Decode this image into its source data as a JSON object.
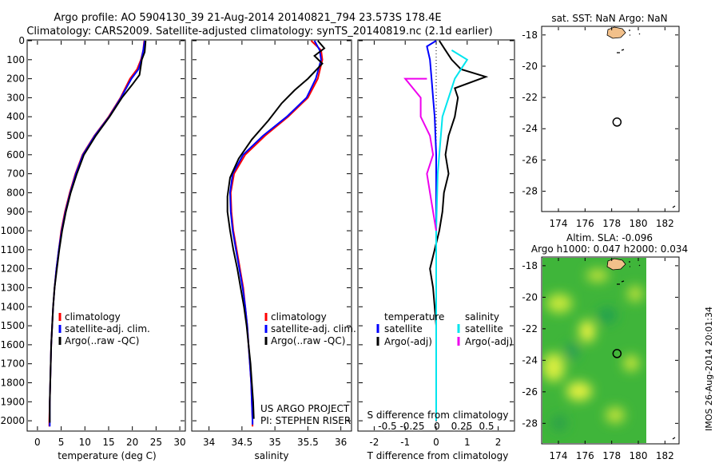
{
  "header": {
    "title": "Argo profile: AO 5904130_39 21-Aug-2014 20140821_794 23.573S 178.4E",
    "subtitle": "Climatology: CARS2009. Satellite-adjusted climatology: synTS_20140819.nc (2.1d earlier)"
  },
  "colors": {
    "climatology": "#ff0000",
    "satellite": "#0000ff",
    "argo": "#000000",
    "sat_s": "#00e5ee",
    "argo_s": "#ee00ee",
    "land": "#f2c08a"
  },
  "chart_data": [
    {
      "type": "line",
      "xlabel": "temperature (deg C)",
      "ylabel": "",
      "xlim": [
        -2,
        31
      ],
      "ylim": [
        2050,
        0
      ],
      "xticks": [
        0,
        5,
        10,
        15,
        20,
        25,
        30
      ],
      "yticks": [
        0,
        100,
        200,
        300,
        400,
        500,
        600,
        700,
        800,
        900,
        1000,
        1100,
        1200,
        1300,
        1400,
        1500,
        1600,
        1700,
        1800,
        1900,
        2000
      ],
      "legend": [
        "climatology",
        "satellite-adj. clim.",
        "Argo(..raw -QC)"
      ],
      "series": [
        {
          "name": "climatology",
          "color": "#ff0000",
          "points": [
            [
              22.5,
              0
            ],
            [
              22.3,
              50
            ],
            [
              21.8,
              100
            ],
            [
              21.0,
              150
            ],
            [
              19.5,
              200
            ],
            [
              17.5,
              300
            ],
            [
              15.0,
              400
            ],
            [
              12.0,
              500
            ],
            [
              9.5,
              600
            ],
            [
              8.0,
              700
            ],
            [
              6.8,
              800
            ],
            [
              5.8,
              900
            ],
            [
              5.0,
              1000
            ],
            [
              4.5,
              1100
            ],
            [
              4.0,
              1200
            ],
            [
              3.6,
              1300
            ],
            [
              3.3,
              1400
            ],
            [
              3.1,
              1500
            ],
            [
              2.9,
              1600
            ],
            [
              2.8,
              1700
            ],
            [
              2.7,
              1800
            ],
            [
              2.6,
              1900
            ],
            [
              2.5,
              2000
            ],
            [
              2.5,
              2030
            ]
          ]
        },
        {
          "name": "satellite-adj. clim.",
          "color": "#0000ff",
          "points": [
            [
              22.6,
              0
            ],
            [
              22.3,
              50
            ],
            [
              21.9,
              100
            ],
            [
              21.3,
              150
            ],
            [
              19.8,
              200
            ],
            [
              17.6,
              300
            ],
            [
              15.1,
              400
            ],
            [
              12.1,
              500
            ],
            [
              9.6,
              600
            ],
            [
              8.1,
              700
            ],
            [
              6.9,
              800
            ],
            [
              5.9,
              900
            ],
            [
              5.1,
              1000
            ],
            [
              4.5,
              1100
            ],
            [
              4.0,
              1200
            ],
            [
              3.6,
              1300
            ],
            [
              3.3,
              1400
            ],
            [
              3.1,
              1500
            ],
            [
              2.9,
              1600
            ],
            [
              2.8,
              1700
            ],
            [
              2.7,
              1800
            ],
            [
              2.6,
              1900
            ],
            [
              2.6,
              2000
            ],
            [
              2.6,
              2030
            ]
          ]
        },
        {
          "name": "Argo(..raw -QC)",
          "color": "#000000",
          "points": [
            [
              22.8,
              0
            ],
            [
              22.6,
              60
            ],
            [
              22.0,
              100
            ],
            [
              21.5,
              180
            ],
            [
              20.0,
              230
            ],
            [
              17.8,
              300
            ],
            [
              15.2,
              400
            ],
            [
              12.3,
              500
            ],
            [
              9.8,
              600
            ],
            [
              8.3,
              700
            ],
            [
              7.0,
              800
            ],
            [
              6.0,
              900
            ],
            [
              5.2,
              1000
            ],
            [
              4.6,
              1100
            ],
            [
              4.1,
              1200
            ],
            [
              3.6,
              1300
            ],
            [
              3.3,
              1400
            ],
            [
              3.1,
              1500
            ],
            [
              2.9,
              1600
            ],
            [
              2.8,
              1700
            ],
            [
              2.7,
              1800
            ],
            [
              2.6,
              1900
            ],
            [
              2.6,
              2000
            ],
            [
              2.6,
              2010
            ]
          ]
        }
      ]
    },
    {
      "type": "line",
      "xlabel": "salinity",
      "ylabel": "",
      "xlim": [
        33.75,
        36.15
      ],
      "ylim": [
        2050,
        0
      ],
      "xticks": [
        34,
        34.5,
        35,
        35.5,
        36
      ],
      "legend": [
        "climatology",
        "satellite-adj. clim.",
        "Argo(..raw -QC)"
      ],
      "series": [
        {
          "name": "climatology",
          "color": "#ff0000",
          "points": [
            [
              35.55,
              0
            ],
            [
              35.7,
              50
            ],
            [
              35.72,
              100
            ],
            [
              35.65,
              200
            ],
            [
              35.5,
              300
            ],
            [
              35.2,
              400
            ],
            [
              34.85,
              500
            ],
            [
              34.55,
              600
            ],
            [
              34.38,
              700
            ],
            [
              34.33,
              800
            ],
            [
              34.34,
              900
            ],
            [
              34.37,
              1000
            ],
            [
              34.42,
              1100
            ],
            [
              34.47,
              1200
            ],
            [
              34.52,
              1300
            ],
            [
              34.55,
              1400
            ],
            [
              34.58,
              1500
            ],
            [
              34.6,
              1600
            ],
            [
              34.62,
              1700
            ],
            [
              34.64,
              1800
            ],
            [
              34.65,
              1900
            ],
            [
              34.66,
              2000
            ],
            [
              34.66,
              2030
            ]
          ]
        },
        {
          "name": "satellite-adj. clim.",
          "color": "#0000ff",
          "points": [
            [
              35.6,
              0
            ],
            [
              35.68,
              50
            ],
            [
              35.7,
              100
            ],
            [
              35.62,
              200
            ],
            [
              35.48,
              300
            ],
            [
              35.18,
              400
            ],
            [
              34.82,
              500
            ],
            [
              34.52,
              600
            ],
            [
              34.36,
              700
            ],
            [
              34.32,
              800
            ],
            [
              34.33,
              900
            ],
            [
              34.36,
              1000
            ],
            [
              34.41,
              1100
            ],
            [
              34.46,
              1200
            ],
            [
              34.51,
              1300
            ],
            [
              34.55,
              1400
            ],
            [
              34.58,
              1500
            ],
            [
              34.6,
              1600
            ],
            [
              34.62,
              1700
            ],
            [
              34.64,
              1800
            ],
            [
              34.65,
              1900
            ],
            [
              34.66,
              2000
            ],
            [
              34.66,
              2020
            ]
          ]
        },
        {
          "name": "Argo(..raw -QC)",
          "color": "#000000",
          "points": [
            [
              35.65,
              0
            ],
            [
              35.75,
              40
            ],
            [
              35.6,
              80
            ],
            [
              35.72,
              120
            ],
            [
              35.5,
              200
            ],
            [
              35.3,
              260
            ],
            [
              35.1,
              330
            ],
            [
              34.9,
              420
            ],
            [
              34.65,
              520
            ],
            [
              34.45,
              620
            ],
            [
              34.32,
              720
            ],
            [
              34.28,
              820
            ],
            [
              34.28,
              900
            ],
            [
              34.32,
              1000
            ],
            [
              34.37,
              1100
            ],
            [
              34.43,
              1200
            ],
            [
              34.48,
              1300
            ],
            [
              34.53,
              1400
            ],
            [
              34.57,
              1500
            ],
            [
              34.6,
              1600
            ],
            [
              34.63,
              1700
            ],
            [
              34.65,
              1800
            ],
            [
              34.67,
              1900
            ],
            [
              34.68,
              1990
            ]
          ]
        }
      ]
    },
    {
      "type": "line",
      "xlabel": "T difference from climatology",
      "x2label": "S difference from climatology",
      "xlim": [
        -2.5,
        2.5
      ],
      "ylim": [
        2050,
        0
      ],
      "xticks": [
        -2,
        -1,
        0,
        1,
        2
      ],
      "x2ticks": [
        "-0.5",
        "-0.25",
        "0",
        "0.25",
        "0.5"
      ],
      "legend_headers": [
        "temperature",
        "salinity"
      ],
      "legend": [
        "satellite",
        "Argo(-adj)",
        "satellite",
        "Argo(-adj)"
      ],
      "series": [
        {
          "name": "satellite",
          "group": "temperature",
          "color": "#0000ff",
          "points": [
            [
              0.0,
              0
            ],
            [
              -0.3,
              30
            ],
            [
              -0.2,
              100
            ],
            [
              -0.15,
              200
            ],
            [
              -0.1,
              300
            ],
            [
              -0.05,
              400
            ],
            [
              0,
              600
            ],
            [
              0,
              800
            ],
            [
              0,
              1000
            ],
            [
              0,
              1200
            ],
            [
              0,
              1500
            ],
            [
              0,
              1800
            ],
            [
              0,
              2000
            ]
          ]
        },
        {
          "name": "Argo(-adj)",
          "group": "temperature",
          "color": "#000000",
          "points": [
            [
              0.1,
              0
            ],
            [
              0.3,
              50
            ],
            [
              0.5,
              100
            ],
            [
              0.8,
              150
            ],
            [
              1.6,
              190
            ],
            [
              0.6,
              250
            ],
            [
              0.7,
              300
            ],
            [
              0.6,
              400
            ],
            [
              0.4,
              500
            ],
            [
              0.3,
              600
            ],
            [
              0.4,
              700
            ],
            [
              0.25,
              800
            ],
            [
              0.2,
              900
            ],
            [
              0.1,
              1000
            ],
            [
              -0.2,
              1200
            ],
            [
              -0.1,
              1300
            ],
            [
              0.0,
              1500
            ],
            [
              0.0,
              1800
            ],
            [
              0.0,
              2000
            ]
          ]
        },
        {
          "name": "satellite",
          "group": "salinity",
          "color": "#00e5ee",
          "points": [
            [
              0.5,
              50
            ],
            [
              1.0,
              100
            ],
            [
              0.6,
              200
            ],
            [
              0.2,
              400
            ],
            [
              0.05,
              700
            ],
            [
              0.0,
              1000
            ],
            [
              0.0,
              2000
            ]
          ]
        },
        {
          "name": "Argo(-adj)",
          "group": "salinity",
          "color": "#ee00ee",
          "points": [
            [
              -0.3,
              200
            ],
            [
              -1.0,
              200
            ],
            [
              -0.5,
              300
            ],
            [
              -0.5,
              400
            ],
            [
              -0.2,
              500
            ],
            [
              -0.1,
              600
            ],
            [
              -0.3,
              700
            ],
            [
              -0.2,
              800
            ],
            [
              -0.1,
              900
            ],
            [
              0.0,
              1000
            ]
          ]
        }
      ]
    },
    {
      "type": "scatter",
      "title": "sat. SST: NaN Argo: NaN",
      "xlim": [
        172.8,
        183.0
      ],
      "ylim": [
        -29.3,
        -17.5
      ],
      "xticks": [
        174,
        176,
        178,
        180,
        182
      ],
      "yticks": [
        -18,
        -20,
        -22,
        -24,
        -26,
        -28
      ],
      "points": [
        {
          "x": 178.4,
          "y": -23.573
        }
      ]
    },
    {
      "type": "heatmap",
      "title": "Altim. SLA: -0.096",
      "subtitle": "Argo h1000: 0.047 h2000: 0.034",
      "xlim": [
        172.8,
        183.0
      ],
      "ylim": [
        -29.3,
        -17.5
      ],
      "xticks": [
        174,
        176,
        178,
        180,
        182
      ],
      "yticks": [
        -18,
        -20,
        -22,
        -24,
        -26,
        -28
      ],
      "points": [
        {
          "x": 178.4,
          "y": -23.573
        }
      ]
    }
  ],
  "credits": {
    "line1": "US ARGO PROJECT",
    "line2": "PI: STEPHEN RISER",
    "stamp": "IMOS 26-Aug-2014 20:01:34"
  }
}
